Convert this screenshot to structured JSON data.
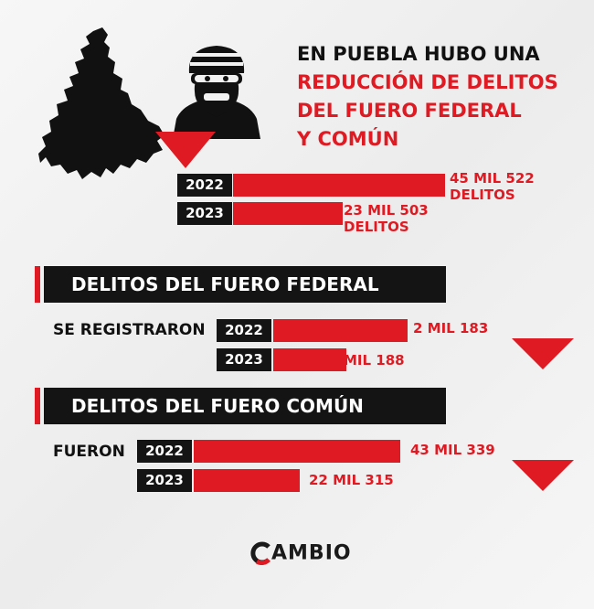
{
  "headline": {
    "line1": "EN PUEBLA HUBO UNA",
    "line2": "REDUCCIÓN DE DELITOS",
    "line3": "DEL FUERO FEDERAL",
    "line4": "Y COMÚN"
  },
  "icons": {
    "map": "puebla-map-icon",
    "thief": "masked-thief-icon",
    "arrow": "down-triangle-icon"
  },
  "colors": {
    "accent": "#e01a22",
    "dark": "#141414"
  },
  "chart_data": [
    {
      "type": "bar",
      "title": "",
      "categories": [
        "2022",
        "2023"
      ],
      "values": [
        45522,
        23503
      ],
      "value_labels": [
        [
          "45 MIL 522",
          "DELITOS"
        ],
        [
          "23 MIL 503",
          "DELITOS"
        ]
      ]
    },
    {
      "type": "bar",
      "title": "DELITOS DEL FUERO FEDERAL",
      "row_label": "SE REGISTRARON",
      "categories": [
        "2022",
        "2023"
      ],
      "values": [
        2183,
        1188
      ],
      "value_labels": [
        "2 MIL 183",
        "MIL 188"
      ]
    },
    {
      "type": "bar",
      "title": "DELITOS DEL FUERO COMÚN",
      "row_label": "FUERON",
      "categories": [
        "2022",
        "2023"
      ],
      "values": [
        43339,
        22315
      ],
      "value_labels": [
        "43 MIL 339",
        "22 MIL 315"
      ]
    }
  ],
  "logo": {
    "text": "AMBIO",
    "icon": "c-logo-icon"
  }
}
